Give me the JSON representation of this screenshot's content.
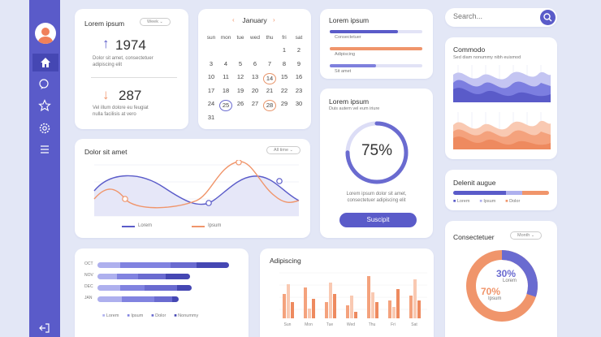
{
  "sidebar": {
    "items": [
      {
        "name": "home-icon"
      },
      {
        "name": "chat-icon"
      },
      {
        "name": "star-icon"
      },
      {
        "name": "gear-icon"
      },
      {
        "name": "menu-icon"
      }
    ],
    "logout": "logout-icon"
  },
  "search": {
    "placeholder": "Search..."
  },
  "stats": {
    "title": "Lorem ipsum",
    "filter": "Week",
    "up_value": "1974",
    "up_text1": "Dolor sit amet, consectetuer",
    "up_text2": "adipiscing elit",
    "down_value": "287",
    "down_text1": "Vel illum dolore eu feugiat",
    "down_text2": "nulla facilisis at vero"
  },
  "calendar": {
    "month": "January",
    "days_header": [
      "sun",
      "mon",
      "tue",
      "wed",
      "thu",
      "fri",
      "sat"
    ],
    "dates": [
      [
        "",
        "",
        "",
        "",
        "",
        "1",
        "2"
      ],
      [
        "3",
        "4",
        "5",
        "6",
        "7",
        "8",
        "9"
      ],
      [
        "10",
        "11",
        "12",
        "13",
        "14",
        "15",
        "16"
      ],
      [
        "17",
        "18",
        "19",
        "20",
        "21",
        "22",
        "23"
      ],
      [
        "24",
        "25",
        "26",
        "27",
        "28",
        "29",
        "30"
      ],
      [
        "31",
        "",
        "",
        "",
        "",
        "",
        ""
      ]
    ]
  },
  "progress_card": {
    "title": "Lorem ipsum",
    "bars": [
      {
        "label": "Consectetuer",
        "value": 0.74,
        "color": "#5a5bc9"
      },
      {
        "label": "Adipiscing",
        "value": 1.0,
        "color": "#f0956b"
      },
      {
        "label": "Sit amet",
        "value": 0.5,
        "color": "#7e80dd"
      }
    ]
  },
  "donut": {
    "title": "Lorem ipsum",
    "subtitle": "Duis autem vel eum iriure",
    "percent": "75%",
    "value": 0.75,
    "text1": "Lorem ipsum dolor sit amet,",
    "text2": "consectetuer adipiscing elit",
    "button": "Suscipit"
  },
  "commodo": {
    "title": "Commodo",
    "subtitle": "Sed diam nonummy nibh euismod"
  },
  "line_chart": {
    "title": "Dolor sit amet",
    "filter": "All time",
    "legend": [
      "Lorem",
      "Ipsum"
    ]
  },
  "delenit": {
    "title": "Delenit augue",
    "legend": [
      "Lorem",
      "Ipsum",
      "Dolor"
    ]
  },
  "hbar": {
    "categories": [
      "OCT",
      "NOV",
      "DEC",
      "JAN"
    ],
    "legend": [
      "Lorem",
      "Ipsum",
      "Dolor",
      "Nonummy"
    ]
  },
  "vbar": {
    "title": "Adipiscing",
    "categories": [
      "Sun",
      "Mon",
      "Tue",
      "Wed",
      "Thu",
      "Fri",
      "Sat"
    ]
  },
  "consectetuer": {
    "title": "Consectetuer",
    "filter": "Month",
    "p1": "30%",
    "p1_label": "Lorem",
    "p2": "70%",
    "p2_label": "Ipsum"
  },
  "colors": {
    "primary": "#5a5bc9",
    "accent": "#f0956b",
    "light": "#aeb0ee"
  }
}
